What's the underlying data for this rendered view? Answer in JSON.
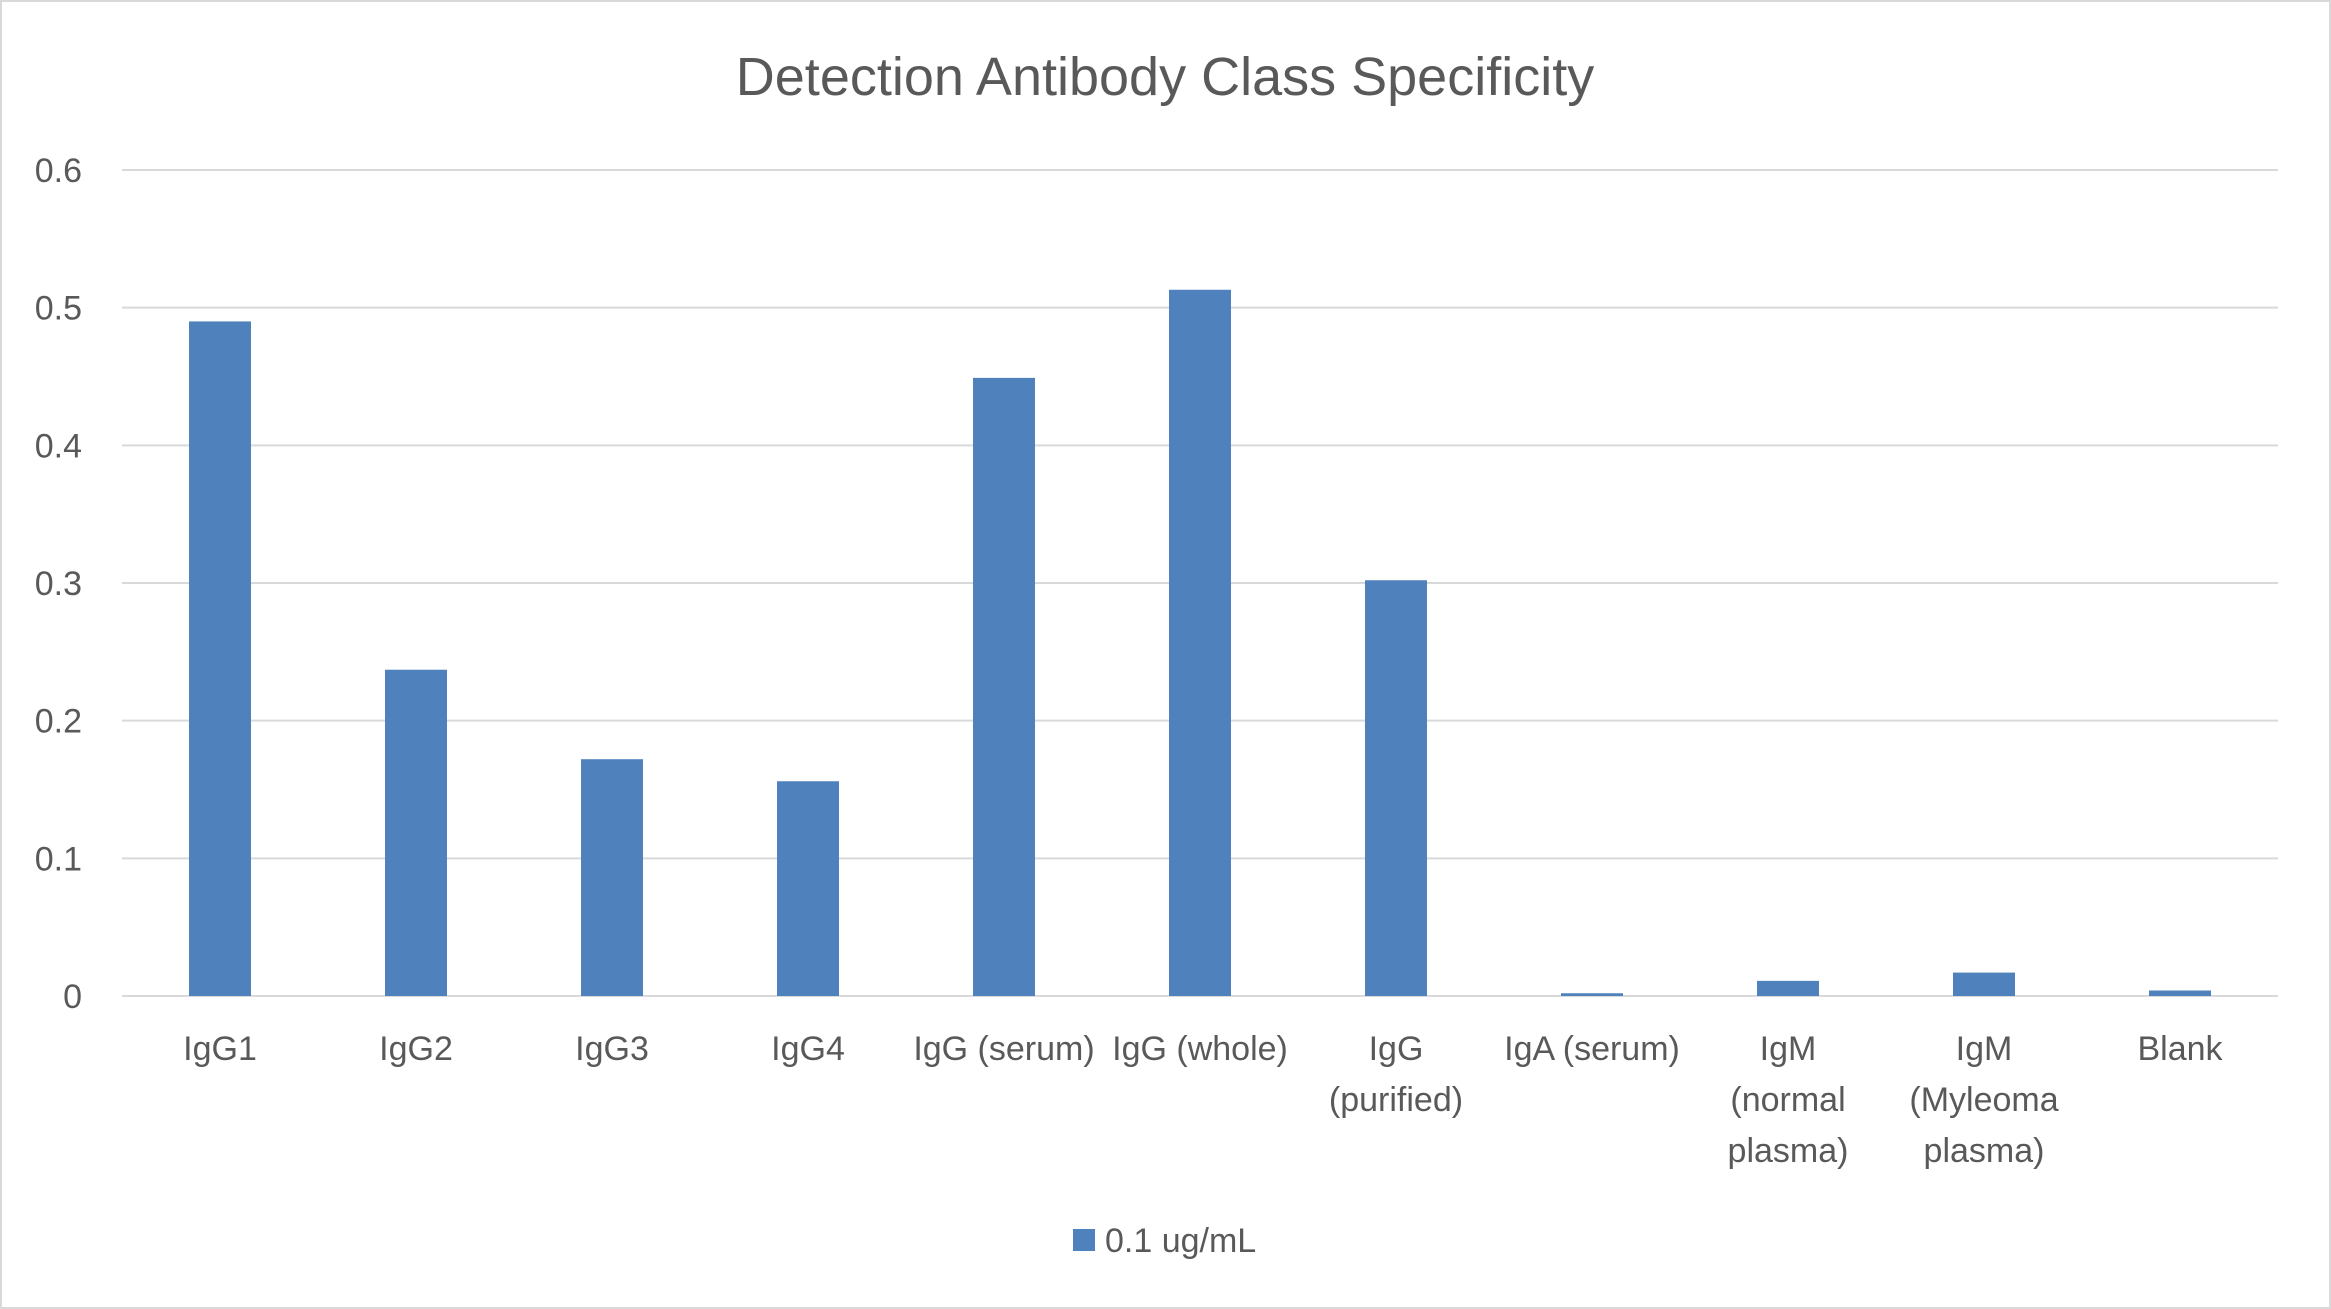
{
  "chart_data": {
    "type": "bar",
    "title": "Detection Antibody Class Specificity",
    "xlabel": "",
    "ylabel": "",
    "ylim": [
      0,
      0.6
    ],
    "yticks": [
      "0",
      "0.1",
      "0.2",
      "0.3",
      "0.4",
      "0.5",
      "0.6"
    ],
    "grid": true,
    "legend_position": "bottom",
    "categories": [
      [
        "IgG1"
      ],
      [
        "IgG2"
      ],
      [
        "IgG3"
      ],
      [
        "IgG4"
      ],
      [
        "IgG (serum)"
      ],
      [
        "IgG (whole)"
      ],
      [
        "IgG",
        "(purified)"
      ],
      [
        "IgA (serum)"
      ],
      [
        "IgM",
        "(normal",
        "plasma)"
      ],
      [
        "IgM",
        "(Myleoma",
        "plasma)"
      ],
      [
        "Blank"
      ]
    ],
    "series": [
      {
        "name": "0.1 ug/mL",
        "color": "#4f81bd",
        "values": [
          0.49,
          0.237,
          0.172,
          0.156,
          0.449,
          0.513,
          0.302,
          0.002,
          0.011,
          0.017,
          0.004
        ]
      }
    ]
  }
}
